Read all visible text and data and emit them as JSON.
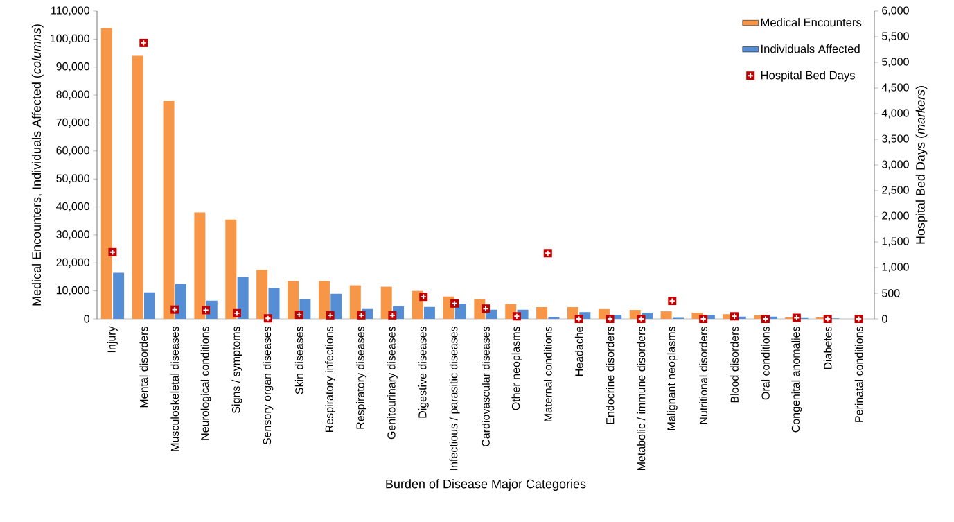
{
  "chart_data": {
    "type": "bar",
    "xlabel": "Burden of Disease Major Categories",
    "ylabel": "Medical Encounters, Individuals Affected (*columns*)",
    "y2label": "Hospital Bed Days (*markers*)",
    "categories": [
      "Injury",
      "Mental disorders",
      "Musculoskeletal diseases",
      "Neurological conditions",
      "Signs / symptoms",
      "Sensory organ diseases",
      "Skin diseases",
      "Respiratory infections",
      "Respiratory diseases",
      "Genitourinary diseases",
      "Digestive diseases",
      "Infectious / parasitic diseases",
      "Cardiovascular diseases",
      "Other neoplasms",
      "Maternal conditions",
      "Headache",
      "Endocrine disorders",
      "Metabolic / immune disorders",
      "Malignant neoplasms",
      "Nutritional disorders",
      "Blood disorders",
      "Oral conditions",
      "Congenital anomalies",
      "Diabetes",
      "Perinatal conditions"
    ],
    "series": [
      {
        "name": "Medical Encounters",
        "color": "#f79646",
        "values": [
          104000,
          94000,
          78000,
          38000,
          35500,
          17500,
          13500,
          13500,
          12000,
          11500,
          10000,
          8000,
          7000,
          5300,
          4200,
          4200,
          3500,
          3200,
          2700,
          2200,
          1700,
          1300,
          500,
          500,
          null
        ]
      },
      {
        "name": "Individuals Affected",
        "color": "#558ed5",
        "values": [
          16500,
          9500,
          12500,
          6500,
          15000,
          11000,
          7000,
          9000,
          3500,
          4500,
          4300,
          5400,
          3300,
          3300,
          600,
          2400,
          1500,
          2200,
          400,
          1400,
          800,
          800,
          300,
          200,
          null
        ]
      },
      {
        "name": "Hospital Bed Days",
        "type": "scatter",
        "axis": "y2",
        "marker": "square",
        "color": "#c00000",
        "values": [
          1300,
          5380,
          180,
          170,
          110,
          10,
          80,
          70,
          70,
          70,
          430,
          300,
          200,
          50,
          1280,
          0,
          0,
          0,
          350,
          0,
          50,
          0,
          20,
          0,
          0
        ]
      }
    ],
    "ylim": [
      0,
      110000
    ],
    "yticks": [
      {
        "value": 0,
        "label": "0"
      },
      {
        "value": 10000,
        "label": "10,000"
      },
      {
        "value": 20000,
        "label": "20,000"
      },
      {
        "value": 30000,
        "label": "30,000"
      },
      {
        "value": 40000,
        "label": "40,000"
      },
      {
        "value": 50000,
        "label": "50,000"
      },
      {
        "value": 60000,
        "label": "60,000"
      },
      {
        "value": 70000,
        "label": "70,000"
      },
      {
        "value": 80000,
        "label": "80,000"
      },
      {
        "value": 90000,
        "label": "90,000"
      },
      {
        "value": 100000,
        "label": "100,000"
      },
      {
        "value": 110000,
        "label": "110,000"
      }
    ],
    "y2lim": [
      0,
      6000
    ],
    "y2ticks": [
      {
        "value": 0,
        "label": "0"
      },
      {
        "value": 500,
        "label": "500"
      },
      {
        "value": 1000,
        "label": "1,000"
      },
      {
        "value": 1500,
        "label": "1,500"
      },
      {
        "value": 2000,
        "label": "2,000"
      },
      {
        "value": 2500,
        "label": "2,500"
      },
      {
        "value": 3000,
        "label": "3,000"
      },
      {
        "value": 3500,
        "label": "3,500"
      },
      {
        "value": 4000,
        "label": "4,000"
      },
      {
        "value": 4500,
        "label": "4,500"
      },
      {
        "value": 5000,
        "label": "5,000"
      },
      {
        "value": 5500,
        "label": "5,500"
      },
      {
        "value": 6000,
        "label": "6,000"
      }
    ],
    "grid": false,
    "legend": "top right"
  }
}
